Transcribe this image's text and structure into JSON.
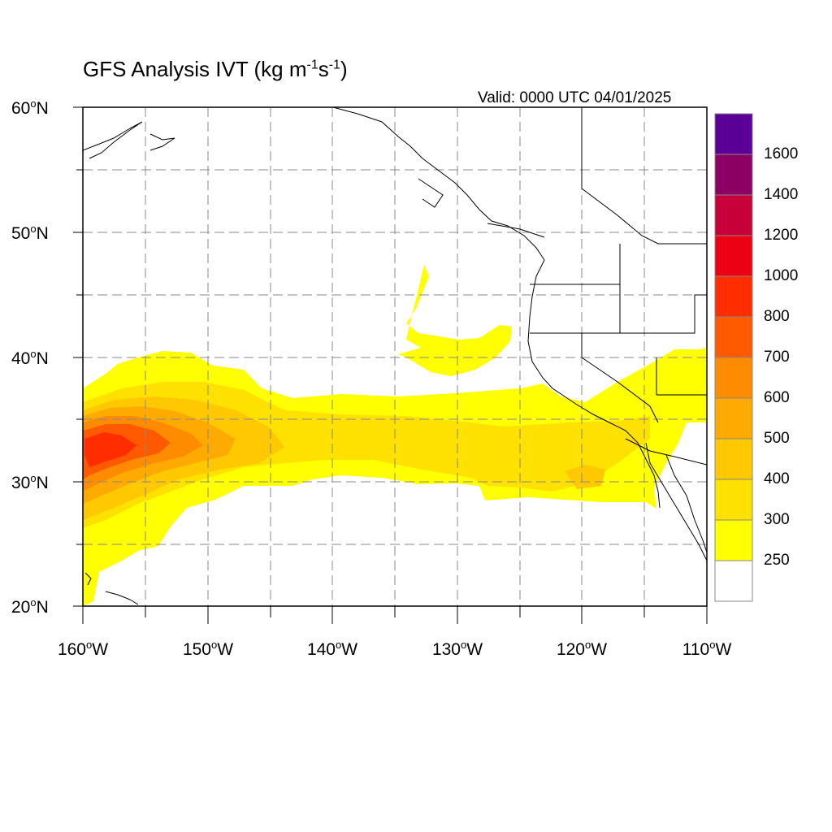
{
  "title": {
    "text": "GFS Analysis IVT (kg m",
    "exp1": "-1",
    "mid": "s",
    "exp2": "-1",
    "close": ")"
  },
  "valid_label": "Valid: 0000 UTC 04/01/2025",
  "lat_ticks": [
    {
      "value": "60",
      "unit": "N"
    },
    {
      "value": "50",
      "unit": "N"
    },
    {
      "value": "40",
      "unit": "N"
    },
    {
      "value": "30",
      "unit": "N"
    },
    {
      "value": "20",
      "unit": "N"
    }
  ],
  "lon_ticks": [
    {
      "value": "160",
      "unit": "W"
    },
    {
      "value": "150",
      "unit": "W"
    },
    {
      "value": "140",
      "unit": "W"
    },
    {
      "value": "130",
      "unit": "W"
    },
    {
      "value": "120",
      "unit": "W"
    },
    {
      "value": "110",
      "unit": "W"
    }
  ],
  "map": {
    "lon_range": [
      -160,
      -110
    ],
    "lat_range": [
      20,
      60
    ],
    "field": "Integrated Vapor Transport",
    "units": "kg m-1 s-1"
  },
  "colorbar": {
    "levels": [
      250,
      300,
      400,
      500,
      600,
      700,
      800,
      1000,
      1200,
      1400,
      1600
    ],
    "labels": [
      "250",
      "300",
      "400",
      "500",
      "600",
      "700",
      "800",
      "1000",
      "1200",
      "1400",
      "1600"
    ],
    "colors": [
      "#ffffff",
      "#ffff00",
      "#ffe100",
      "#ffc800",
      "#ffaa00",
      "#ff8c00",
      "#ff5a00",
      "#ff2d00",
      "#ec0013",
      "#c80039",
      "#8c0064",
      "#5a0096"
    ]
  }
}
